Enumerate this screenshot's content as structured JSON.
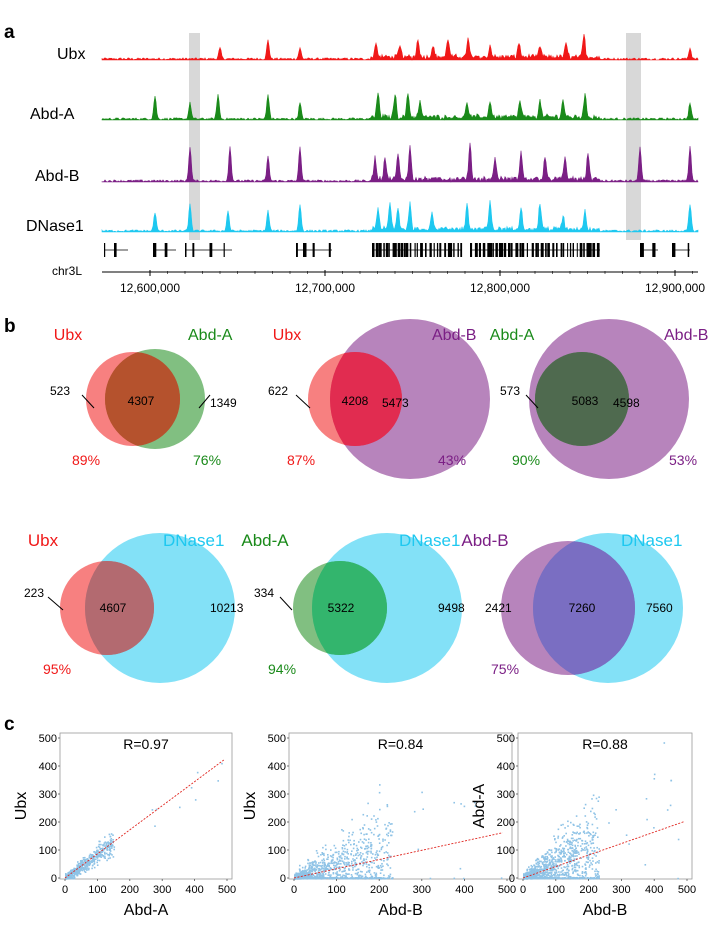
{
  "panels": {
    "a": "a",
    "b": "b",
    "c": "c"
  },
  "colors": {
    "ubx": "#f01818",
    "abda": "#1a8a1a",
    "abdb": "#7b1f85",
    "dnase": "#1ec8f0",
    "scatter": "#8fc3e6",
    "fit": "#e0251f"
  },
  "panel_a": {
    "tracks": [
      {
        "name": "Ubx",
        "color": "#f01818"
      },
      {
        "name": "Abd-A",
        "color": "#1a8a1a"
      },
      {
        "name": "Abd-B",
        "color": "#7b1f85"
      },
      {
        "name": "DNase1",
        "color": "#1ec8f0"
      }
    ],
    "chrom": "chr3L",
    "axis_labels": [
      "12,600,000",
      "12,700,000",
      "12,800,000",
      "12,900,000"
    ]
  },
  "panel_b": {
    "venns": [
      {
        "left": "Ubx",
        "right": "Abd-A",
        "left_only": "523",
        "overlap": "4307",
        "right_only": "1349",
        "left_pct": "89%",
        "right_pct": "76%"
      },
      {
        "left": "Ubx",
        "right": "Abd-B",
        "left_only": "622",
        "overlap": "4208",
        "right_only": "5473",
        "left_pct": "87%",
        "right_pct": "43%"
      },
      {
        "left": "Abd-A",
        "right": "Abd-B",
        "left_only": "573",
        "overlap": "5083",
        "right_only": "4598",
        "left_pct": "90%",
        "right_pct": "53%"
      },
      {
        "left": "Ubx",
        "right": "DNase1",
        "left_only": "223",
        "overlap": "4607",
        "right_only": "10213",
        "left_pct": "95%"
      },
      {
        "left": "Abd-A",
        "right": "DNase1",
        "left_only": "334",
        "overlap": "5322",
        "right_only": "9498",
        "left_pct": "94%"
      },
      {
        "left": "Abd-B",
        "right": "DNase1",
        "left_only": "2421",
        "overlap": "7260",
        "right_only": "7560",
        "left_pct": "75%"
      }
    ]
  },
  "chart_data": [
    {
      "type": "scatter",
      "title": "R=0.97",
      "xlabel": "Abd-A",
      "ylabel": "Ubx",
      "xlim": [
        0,
        500
      ],
      "ylim": [
        0,
        500
      ],
      "xticks": [
        "0",
        "100",
        "200",
        "300",
        "400",
        "500"
      ],
      "yticks": [
        "0",
        "100",
        "200",
        "300",
        "400",
        "500"
      ],
      "fit_slope": 0.86,
      "spread": 0.1
    },
    {
      "type": "scatter",
      "title": "R=0.84",
      "xlabel": "Abd-B",
      "ylabel": "Ubx",
      "xlim": [
        0,
        500
      ],
      "ylim": [
        0,
        500
      ],
      "xticks": [
        "0",
        "100",
        "200",
        "300",
        "400",
        "500"
      ],
      "yticks": [
        "0",
        "100",
        "200",
        "300",
        "400",
        "500"
      ],
      "fit_slope": 0.33,
      "spread": 0.45
    },
    {
      "type": "scatter",
      "title": "R=0.88",
      "xlabel": "Abd-B",
      "ylabel": "Abd-A",
      "xlim": [
        0,
        500
      ],
      "ylim": [
        0,
        500
      ],
      "xticks": [
        "0",
        "100",
        "200",
        "300",
        "400",
        "500"
      ],
      "yticks": [
        "0",
        "100",
        "200",
        "300",
        "400",
        "500"
      ],
      "fit_slope": 0.41,
      "spread": 0.4
    }
  ]
}
